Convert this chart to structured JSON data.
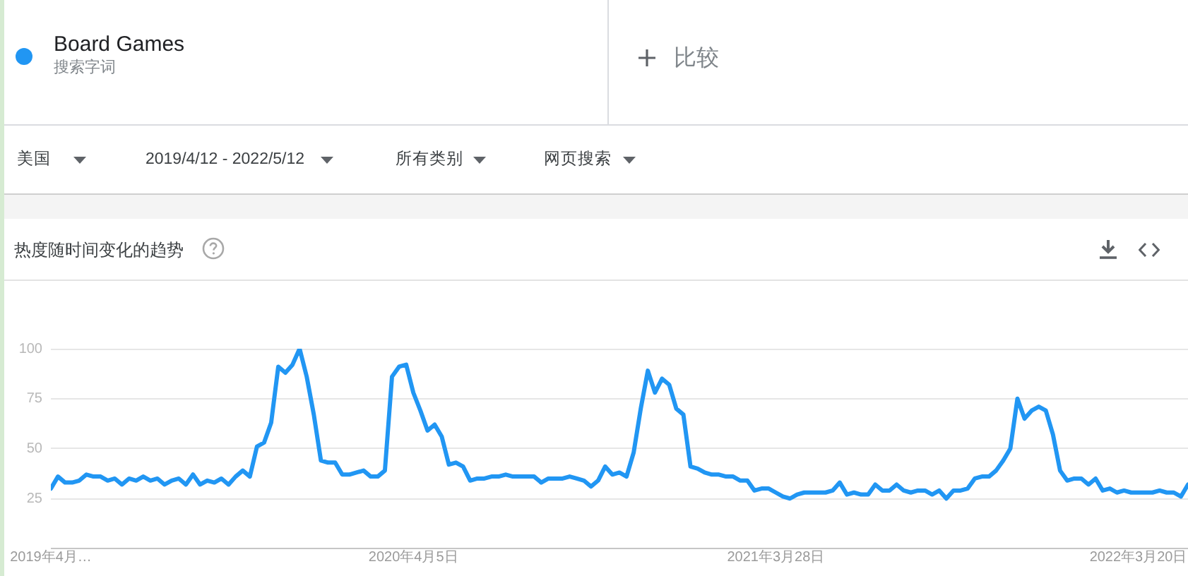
{
  "chart_data": {
    "type": "line",
    "title": "热度随时间变化的趋势",
    "annotations": [
      "搜索字词",
      "比较",
      "美国",
      "2019/4/12 - 2022/5/12",
      "所有类别",
      "网页搜索"
    ],
    "x": [
      "2019-04-14",
      "2019-04-21",
      "2019-04-28",
      "2019-05-05",
      "2019-05-12",
      "2019-05-19",
      "2019-05-26",
      "2019-06-02",
      "2019-06-09",
      "2019-06-16",
      "2019-06-23",
      "2019-06-30",
      "2019-07-07",
      "2019-07-14",
      "2019-07-21",
      "2019-07-28",
      "2019-08-04",
      "2019-08-11",
      "2019-08-18",
      "2019-08-25",
      "2019-09-01",
      "2019-09-08",
      "2019-09-15",
      "2019-09-22",
      "2019-09-29",
      "2019-10-06",
      "2019-10-13",
      "2019-10-20",
      "2019-10-27",
      "2019-11-03",
      "2019-11-10",
      "2019-11-17",
      "2019-11-24",
      "2019-12-01",
      "2019-12-08",
      "2019-12-15",
      "2019-12-22",
      "2019-12-29",
      "2020-01-05",
      "2020-01-12",
      "2020-01-19",
      "2020-01-26",
      "2020-02-02",
      "2020-02-09",
      "2020-02-16",
      "2020-02-23",
      "2020-03-01",
      "2020-03-08",
      "2020-03-15",
      "2020-03-22",
      "2020-03-29",
      "2020-04-05",
      "2020-04-12",
      "2020-04-19",
      "2020-04-26",
      "2020-05-03",
      "2020-05-10",
      "2020-05-17",
      "2020-05-24",
      "2020-05-31",
      "2020-06-07",
      "2020-06-14",
      "2020-06-21",
      "2020-06-28",
      "2020-07-05",
      "2020-07-12",
      "2020-07-19",
      "2020-07-26",
      "2020-08-02",
      "2020-08-09",
      "2020-08-16",
      "2020-08-23",
      "2020-08-30",
      "2020-09-06",
      "2020-09-13",
      "2020-09-20",
      "2020-09-27",
      "2020-10-04",
      "2020-10-11",
      "2020-10-18",
      "2020-10-25",
      "2020-11-01",
      "2020-11-08",
      "2020-11-15",
      "2020-11-22",
      "2020-11-29",
      "2020-12-06",
      "2020-12-13",
      "2020-12-20",
      "2020-12-27",
      "2021-01-03",
      "2021-01-10",
      "2021-01-17",
      "2021-01-24",
      "2021-01-31",
      "2021-02-07",
      "2021-02-14",
      "2021-02-21",
      "2021-02-28",
      "2021-03-07",
      "2021-03-14",
      "2021-03-21",
      "2021-03-28",
      "2021-04-04",
      "2021-04-11",
      "2021-04-18",
      "2021-04-25",
      "2021-05-02",
      "2021-05-09",
      "2021-05-16",
      "2021-05-23",
      "2021-05-30",
      "2021-06-06",
      "2021-06-13",
      "2021-06-20",
      "2021-06-27",
      "2021-07-04",
      "2021-07-11",
      "2021-07-18",
      "2021-07-25",
      "2021-08-01",
      "2021-08-08",
      "2021-08-15",
      "2021-08-22",
      "2021-08-29",
      "2021-09-05",
      "2021-09-12",
      "2021-09-19",
      "2021-09-26",
      "2021-10-03",
      "2021-10-10",
      "2021-10-17",
      "2021-10-24",
      "2021-10-31",
      "2021-11-07",
      "2021-11-14",
      "2021-11-21",
      "2021-11-28",
      "2021-12-05",
      "2021-12-12",
      "2021-12-19",
      "2021-12-26",
      "2022-01-02",
      "2022-01-09",
      "2022-01-16",
      "2022-01-23",
      "2022-01-30",
      "2022-02-06",
      "2022-02-13",
      "2022-02-20",
      "2022-02-27",
      "2022-03-06",
      "2022-03-13",
      "2022-03-20",
      "2022-03-27",
      "2022-04-03",
      "2022-04-10",
      "2022-04-17",
      "2022-04-24",
      "2022-05-01",
      "2022-05-08"
    ],
    "series": [
      {
        "name": "Board Games",
        "color": "#2196f3",
        "values": [
          30,
          36,
          33,
          33,
          34,
          37,
          36,
          36,
          34,
          35,
          32,
          35,
          34,
          36,
          34,
          35,
          32,
          34,
          35,
          32,
          37,
          32,
          34,
          33,
          35,
          32,
          36,
          39,
          36,
          51,
          53,
          63,
          91,
          88,
          92,
          100,
          86,
          67,
          44,
          43,
          43,
          37,
          37,
          38,
          39,
          36,
          36,
          39,
          86,
          91,
          92,
          78,
          69,
          59,
          62,
          56,
          42,
          43,
          41,
          34,
          35,
          35,
          36,
          36,
          37,
          36,
          36,
          36,
          36,
          33,
          35,
          35,
          35,
          36,
          35,
          34,
          31,
          34,
          41,
          37,
          38,
          36,
          48,
          70,
          89,
          78,
          85,
          82,
          70,
          67,
          41,
          40,
          38,
          37,
          37,
          36,
          36,
          34,
          34,
          29,
          30,
          30,
          28,
          26,
          25,
          27,
          28,
          28,
          28,
          28,
          29,
          33,
          27,
          28,
          27,
          27,
          32,
          29,
          29,
          32,
          29,
          28,
          29,
          29,
          27,
          29,
          25,
          29,
          29,
          30,
          35,
          36,
          36,
          39,
          44,
          50,
          75,
          65,
          69,
          71,
          69,
          57,
          39,
          34,
          35,
          35,
          32,
          35,
          29,
          30,
          28,
          29,
          28,
          28,
          28,
          28,
          29,
          28,
          28,
          26,
          32
        ]
      }
    ],
    "xlim": [
      "2019-04-14",
      "2022-05-08"
    ],
    "xticks": [
      {
        "value": "2019-04-14",
        "label": "2019年4月…"
      },
      {
        "value": "2020-04-05",
        "label": "2020年4月5日"
      },
      {
        "value": "2021-03-28",
        "label": "2021年3月28日"
      },
      {
        "value": "2022-03-20",
        "label": "2022年3月20日"
      }
    ],
    "ylim": [
      0,
      100
    ],
    "yticks": [
      25,
      50,
      75,
      100
    ],
    "grid": "y",
    "legend": "top left",
    "marker": "none",
    "line_style": "solid"
  }
}
